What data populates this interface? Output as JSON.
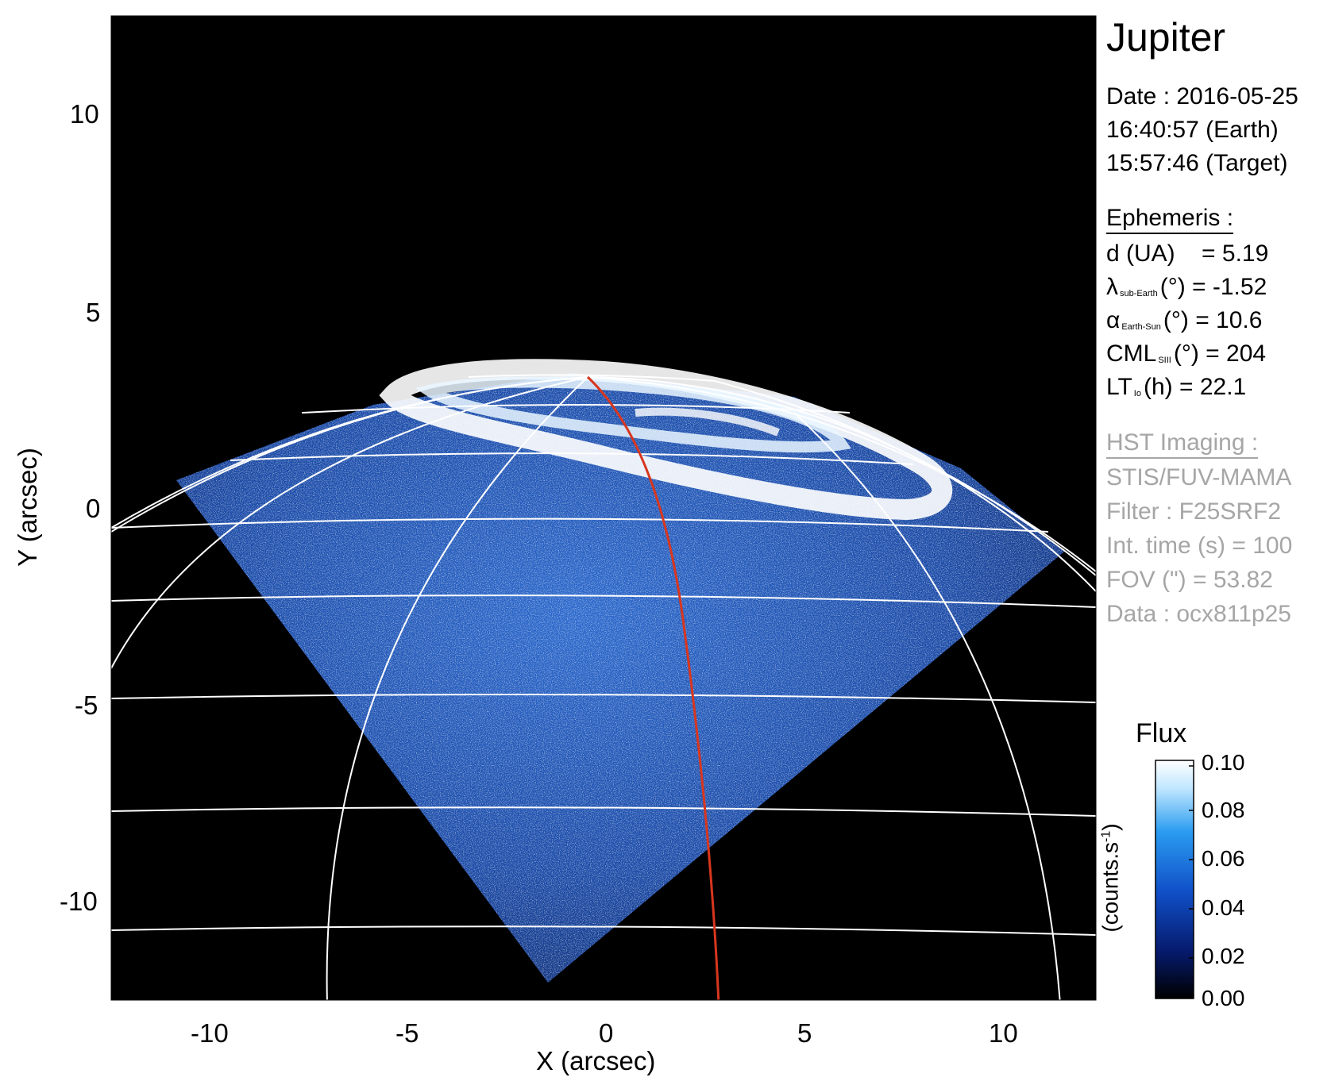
{
  "title": "Jupiter",
  "observation": {
    "date": "Date : 2016-05-25",
    "time_earth": "16:40:57 (Earth)",
    "time_target": "15:57:46 (Target)"
  },
  "ephemeris": {
    "header": "Ephemeris :",
    "d": {
      "label": "d (UA)",
      "value": "= 5.19"
    },
    "lambda": {
      "symbol": "λ",
      "sub": "sub-Earth",
      "rest": "(°) = -1.52"
    },
    "alpha": {
      "symbol": "α",
      "sub": "Earth-Sun",
      "rest": "(°) = 10.6"
    },
    "cml": {
      "symbol": "CML",
      "sub": "SIII",
      "rest": "(°) = 204"
    },
    "lt": {
      "symbol": "LT",
      "sub": "Io",
      "rest": "(h) = 22.1"
    }
  },
  "hst": {
    "header": "HST Imaging :",
    "instrument": "STIS/FUV-MAMA",
    "filter": "Filter : F25SRF2",
    "int_time": "Int. time (s) = 100",
    "fov": "FOV (\") = 53.82",
    "data": "Data : ocx811p25"
  },
  "axes": {
    "xlabel": "X (arcsec)",
    "ylabel": "Y (arcsec)",
    "xticks": [
      "-10",
      "-5",
      "0",
      "5",
      "10"
    ],
    "yticks": [
      "10",
      "5",
      "0",
      "-5",
      "-10"
    ],
    "xlim": [
      -12.5,
      12.5
    ],
    "ylim": [
      -12.5,
      12.5
    ]
  },
  "colorbar": {
    "title": "Flux",
    "unit_label": "(counts.s",
    "unit_sup": "-1",
    "unit_close": ")",
    "ticks": [
      "0.10",
      "0.08",
      "0.06",
      "0.04",
      "0.02",
      "0.00"
    ],
    "range": [
      0.0,
      0.1
    ],
    "colors": [
      "#000000",
      "#061b6e",
      "#1050c8",
      "#2a9cf0",
      "#bfe6ff",
      "#ffffff"
    ]
  },
  "colors": {
    "background": "#000000",
    "grid": "#ffffff",
    "meridian": "#d8361e",
    "gray_text": "#a6a6a6"
  }
}
